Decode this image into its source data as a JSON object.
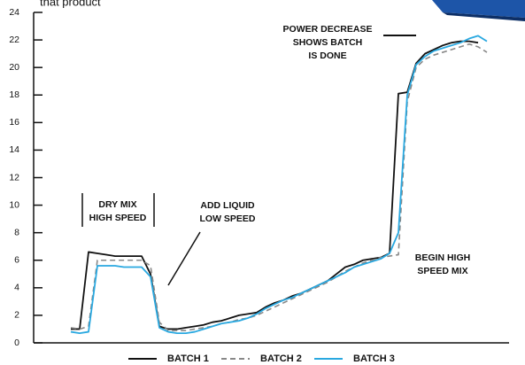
{
  "chart_data": {
    "type": "line",
    "top_text": "that product",
    "categories": [
      null,
      null,
      null,
      null,
      null,
      null,
      null,
      null,
      null,
      null,
      null,
      null,
      null,
      null,
      null,
      null,
      null,
      null,
      null,
      null,
      null,
      null,
      null,
      null,
      null,
      null,
      null,
      null,
      null,
      null,
      null,
      null,
      null,
      null,
      null,
      null,
      null,
      null,
      null,
      null,
      null,
      null,
      null,
      null,
      null,
      null,
      null,
      null
    ],
    "series": [
      {
        "name": "BATCH 1",
        "color": "#111111",
        "dash": false,
        "values": [
          1.0,
          1.0,
          6.6,
          6.5,
          6.4,
          6.3,
          6.3,
          6.3,
          6.3,
          5.0,
          1.2,
          1.0,
          1.0,
          1.1,
          1.2,
          1.3,
          1.5,
          1.6,
          1.8,
          2.0,
          2.1,
          2.2,
          2.6,
          2.9,
          3.1,
          3.4,
          3.6,
          3.9,
          4.2,
          4.5,
          5.0,
          5.5,
          5.7,
          6.0,
          6.1,
          6.2,
          6.5,
          18.1,
          18.2,
          20.3,
          21.0,
          21.3,
          21.6,
          21.8,
          21.9,
          21.9,
          21.8,
          null
        ]
      },
      {
        "name": "BATCH 2",
        "color": "#888888",
        "dash": true,
        "values": [
          1.1,
          1.0,
          1.2,
          6.0,
          6.0,
          6.0,
          6.0,
          6.0,
          6.0,
          5.6,
          1.5,
          0.9,
          0.9,
          0.9,
          1.0,
          1.1,
          1.2,
          1.4,
          1.5,
          1.7,
          1.8,
          2.0,
          2.3,
          2.6,
          2.9,
          3.2,
          3.5,
          3.8,
          4.1,
          4.4,
          4.8,
          5.2,
          5.5,
          5.8,
          6.0,
          6.2,
          6.3,
          6.4,
          17.5,
          20.0,
          20.6,
          20.9,
          21.1,
          21.3,
          21.5,
          21.7,
          21.5,
          21.1
        ]
      },
      {
        "name": "BATCH 3",
        "color": "#29a8e0",
        "dash": false,
        "values": [
          0.8,
          0.7,
          0.8,
          5.6,
          5.6,
          5.6,
          5.5,
          5.5,
          5.5,
          4.8,
          1.1,
          0.8,
          0.7,
          0.7,
          0.8,
          1.0,
          1.2,
          1.4,
          1.5,
          1.6,
          1.8,
          2.1,
          2.5,
          2.8,
          3.1,
          3.3,
          3.6,
          3.9,
          4.2,
          4.5,
          4.8,
          5.1,
          5.5,
          5.7,
          5.9,
          6.1,
          6.5,
          8.0,
          18.0,
          20.2,
          20.8,
          21.2,
          21.4,
          21.6,
          21.8,
          22.1,
          22.3,
          21.9
        ]
      }
    ],
    "ylim": [
      0,
      24
    ],
    "yticks": [
      0,
      2,
      4,
      6,
      8,
      10,
      12,
      14,
      16,
      18,
      20,
      22,
      24
    ],
    "annotations": [
      [
        "DRY MIX",
        "HIGH SPEED"
      ],
      [
        "ADD LIQUID",
        "LOW SPEED"
      ],
      [
        "POWER DECREASE",
        "SHOWS BATCH",
        "IS DONE"
      ],
      [
        "BEGIN HIGH",
        "SPEED MIX"
      ]
    ]
  }
}
